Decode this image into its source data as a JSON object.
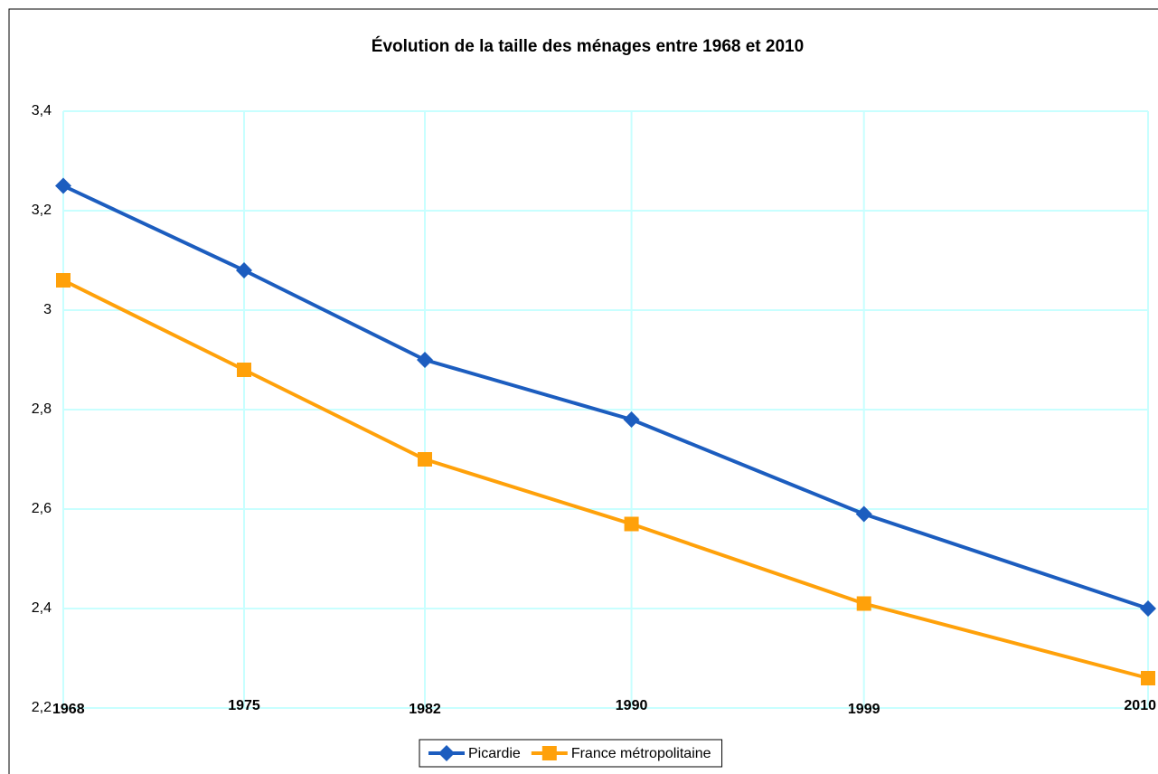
{
  "chart_data": {
    "type": "line",
    "title": "Évolution de la taille des ménages entre 1968 et 2010",
    "x": [
      1968,
      1975,
      1982,
      1990,
      1999,
      2010
    ],
    "xlim": [
      1968,
      2010
    ],
    "xticks": [
      1968,
      1975,
      1982,
      1990,
      1999,
      2010
    ],
    "ylim": [
      2.2,
      3.4
    ],
    "yticks": [
      {
        "value": 2.2,
        "label": "2,2"
      },
      {
        "value": 2.4,
        "label": "2,4"
      },
      {
        "value": 2.6,
        "label": "2,6"
      },
      {
        "value": 2.8,
        "label": "2,8"
      },
      3,
      {
        "value": 3.2,
        "label": "3,2"
      },
      {
        "value": 3.4,
        "label": "3,4"
      }
    ],
    "grid": true,
    "legend": "bottom",
    "series": [
      {
        "name": "Picardie",
        "color": "#1c5dbf",
        "marker": "diamond",
        "values": [
          3.25,
          3.08,
          2.9,
          2.78,
          2.59,
          2.4
        ]
      },
      {
        "name": "France métropolitaine",
        "color": "#ffa10a",
        "marker": "square",
        "values": [
          3.06,
          2.88,
          2.7,
          2.57,
          2.41,
          2.26
        ]
      }
    ]
  }
}
